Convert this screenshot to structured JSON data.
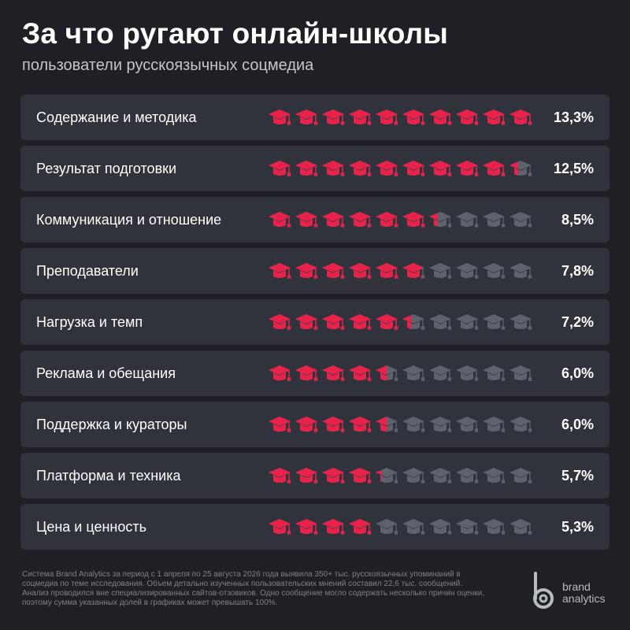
{
  "header": {
    "title": "За что ругают онлайн-школы",
    "subtitle": "пользователи русскоязычных соцмедиа"
  },
  "colors": {
    "accent": "#e8224a",
    "inactive": "#5d626c",
    "row_bg": "#30333b",
    "background": "#1e2026"
  },
  "icon": "graduation-cap-icon",
  "chart_data": {
    "type": "pictograph",
    "icons_per_row": 10,
    "scale_max": 13.3,
    "categories": [
      "Содержание и методика",
      "Результат подготовки",
      "Коммуникация и отношение",
      "Преподаватели",
      "Нагрузка и темп",
      "Реклама и обещания",
      "Поддержка и кураторы",
      "Платформа и техника",
      "Цена и ценность"
    ],
    "values": [
      13.3,
      12.5,
      8.5,
      7.8,
      7.2,
      6.0,
      6.0,
      5.7,
      5.3
    ],
    "value_labels": [
      "13,3%",
      "12,5%",
      "8,5%",
      "7,8%",
      "7,2%",
      "6,0%",
      "6,0%",
      "5,7%",
      "5,3%"
    ]
  },
  "footnote": "Система Brand Analytics за период с 1 апреля по 25 августа 2026 года выявила 350+ тыс. русскоязычных упоминаний в соцмедиа по теме исследования. Объем детально изученных пользовательских мнений составил 22,6 тыс. сообщений. Анализ проводился вне специализированных сайтов-отзовиков. Одно сообщение могло содержать несколько причин оценки, поэтому сумма указанных долей в графиках может превышать 100%.",
  "logo": {
    "line1": "brand",
    "line2": "analytics"
  }
}
